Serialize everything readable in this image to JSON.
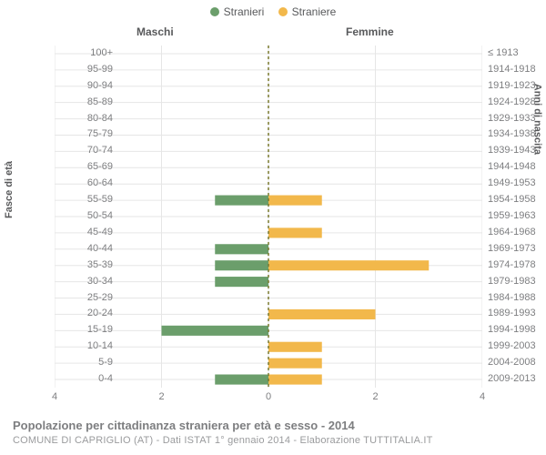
{
  "legend": {
    "items": [
      {
        "label": "Stranieri",
        "color": "#6b9e6b"
      },
      {
        "label": "Straniere",
        "color": "#f2b84b"
      }
    ]
  },
  "headers": {
    "left": "Maschi",
    "right": "Femmine"
  },
  "axis_titles": {
    "left": "Fasce di età",
    "right": "Anni di nascita"
  },
  "footer": {
    "title": "Popolazione per cittadinanza straniera per età e sesso - 2014",
    "subtitle": "COMUNE DI CAPRIGLIO (AT) - Dati ISTAT 1° gennaio 2014 - Elaborazione TUTTITALIA.IT"
  },
  "chart": {
    "type": "bar_diverging",
    "xlim": [
      -4,
      4
    ],
    "xticks": [
      4,
      2,
      0,
      2,
      4
    ],
    "xtick_positions": [
      -4,
      -2,
      0,
      2,
      4
    ],
    "grid_color": "#e6e6e6",
    "center_line_color": "#7a7a2e",
    "center_line_dash": "3,3",
    "bar_height_ratio": 0.62,
    "bg": "#ffffff",
    "rows": [
      {
        "age": "100+",
        "birth": "≤ 1913",
        "m": 0,
        "f": 0
      },
      {
        "age": "95-99",
        "birth": "1914-1918",
        "m": 0,
        "f": 0
      },
      {
        "age": "90-94",
        "birth": "1919-1923",
        "m": 0,
        "f": 0
      },
      {
        "age": "85-89",
        "birth": "1924-1928",
        "m": 0,
        "f": 0
      },
      {
        "age": "80-84",
        "birth": "1929-1933",
        "m": 0,
        "f": 0
      },
      {
        "age": "75-79",
        "birth": "1934-1938",
        "m": 0,
        "f": 0
      },
      {
        "age": "70-74",
        "birth": "1939-1943",
        "m": 0,
        "f": 0
      },
      {
        "age": "65-69",
        "birth": "1944-1948",
        "m": 0,
        "f": 0
      },
      {
        "age": "60-64",
        "birth": "1949-1953",
        "m": 0,
        "f": 0
      },
      {
        "age": "55-59",
        "birth": "1954-1958",
        "m": 1,
        "f": 1
      },
      {
        "age": "50-54",
        "birth": "1959-1963",
        "m": 0,
        "f": 0
      },
      {
        "age": "45-49",
        "birth": "1964-1968",
        "m": 0,
        "f": 1
      },
      {
        "age": "40-44",
        "birth": "1969-1973",
        "m": 1,
        "f": 0
      },
      {
        "age": "35-39",
        "birth": "1974-1978",
        "m": 1,
        "f": 3
      },
      {
        "age": "30-34",
        "birth": "1979-1983",
        "m": 1,
        "f": 0
      },
      {
        "age": "25-29",
        "birth": "1984-1988",
        "m": 0,
        "f": 0
      },
      {
        "age": "20-24",
        "birth": "1989-1993",
        "m": 0,
        "f": 2
      },
      {
        "age": "15-19",
        "birth": "1994-1998",
        "m": 2,
        "f": 0
      },
      {
        "age": "10-14",
        "birth": "1999-2003",
        "m": 0,
        "f": 1
      },
      {
        "age": "5-9",
        "birth": "2004-2008",
        "m": 0,
        "f": 1
      },
      {
        "age": "0-4",
        "birth": "2009-2013",
        "m": 1,
        "f": 1
      }
    ]
  },
  "colors": {
    "male": "#6b9e6b",
    "female": "#f2b84b",
    "text": "#7d7e80"
  }
}
